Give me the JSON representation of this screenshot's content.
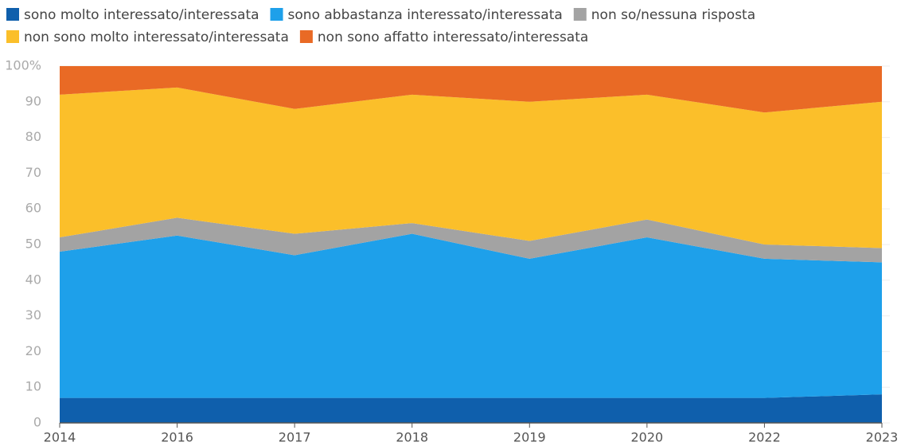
{
  "chart_data": {
    "type": "stacked_area",
    "categories": [
      "2014",
      "2016",
      "2017",
      "2018",
      "2019",
      "2020",
      "2022",
      "2023"
    ],
    "series": [
      {
        "name": "sono molto interessato/interessata",
        "color": "#0f5fac",
        "values": [
          7,
          7,
          7,
          7,
          7,
          7,
          7,
          8
        ]
      },
      {
        "name": "sono abbastanza interessato/interessata",
        "color": "#1ea0ea",
        "values": [
          41,
          45.5,
          40,
          46,
          39,
          45,
          39,
          37
        ]
      },
      {
        "name": "non so/nessuna risposta",
        "color": "#a3a3a3",
        "values": [
          4,
          5,
          6,
          3,
          5,
          5,
          4,
          4
        ]
      },
      {
        "name": "non sono molto interessato/interessata",
        "color": "#fbbf2a",
        "values": [
          40,
          36.5,
          35,
          36,
          39,
          35,
          37,
          41
        ]
      },
      {
        "name": "non sono affatto interessato/interessata",
        "color": "#e96a25",
        "values": [
          8,
          6,
          12,
          8,
          10,
          8,
          13,
          10
        ]
      }
    ],
    "ylim": [
      0,
      100
    ],
    "yticks": [
      0,
      10,
      20,
      30,
      40,
      50,
      60,
      70,
      80,
      90,
      {
        "value": 100,
        "label": "100%"
      }
    ],
    "grid": true
  }
}
